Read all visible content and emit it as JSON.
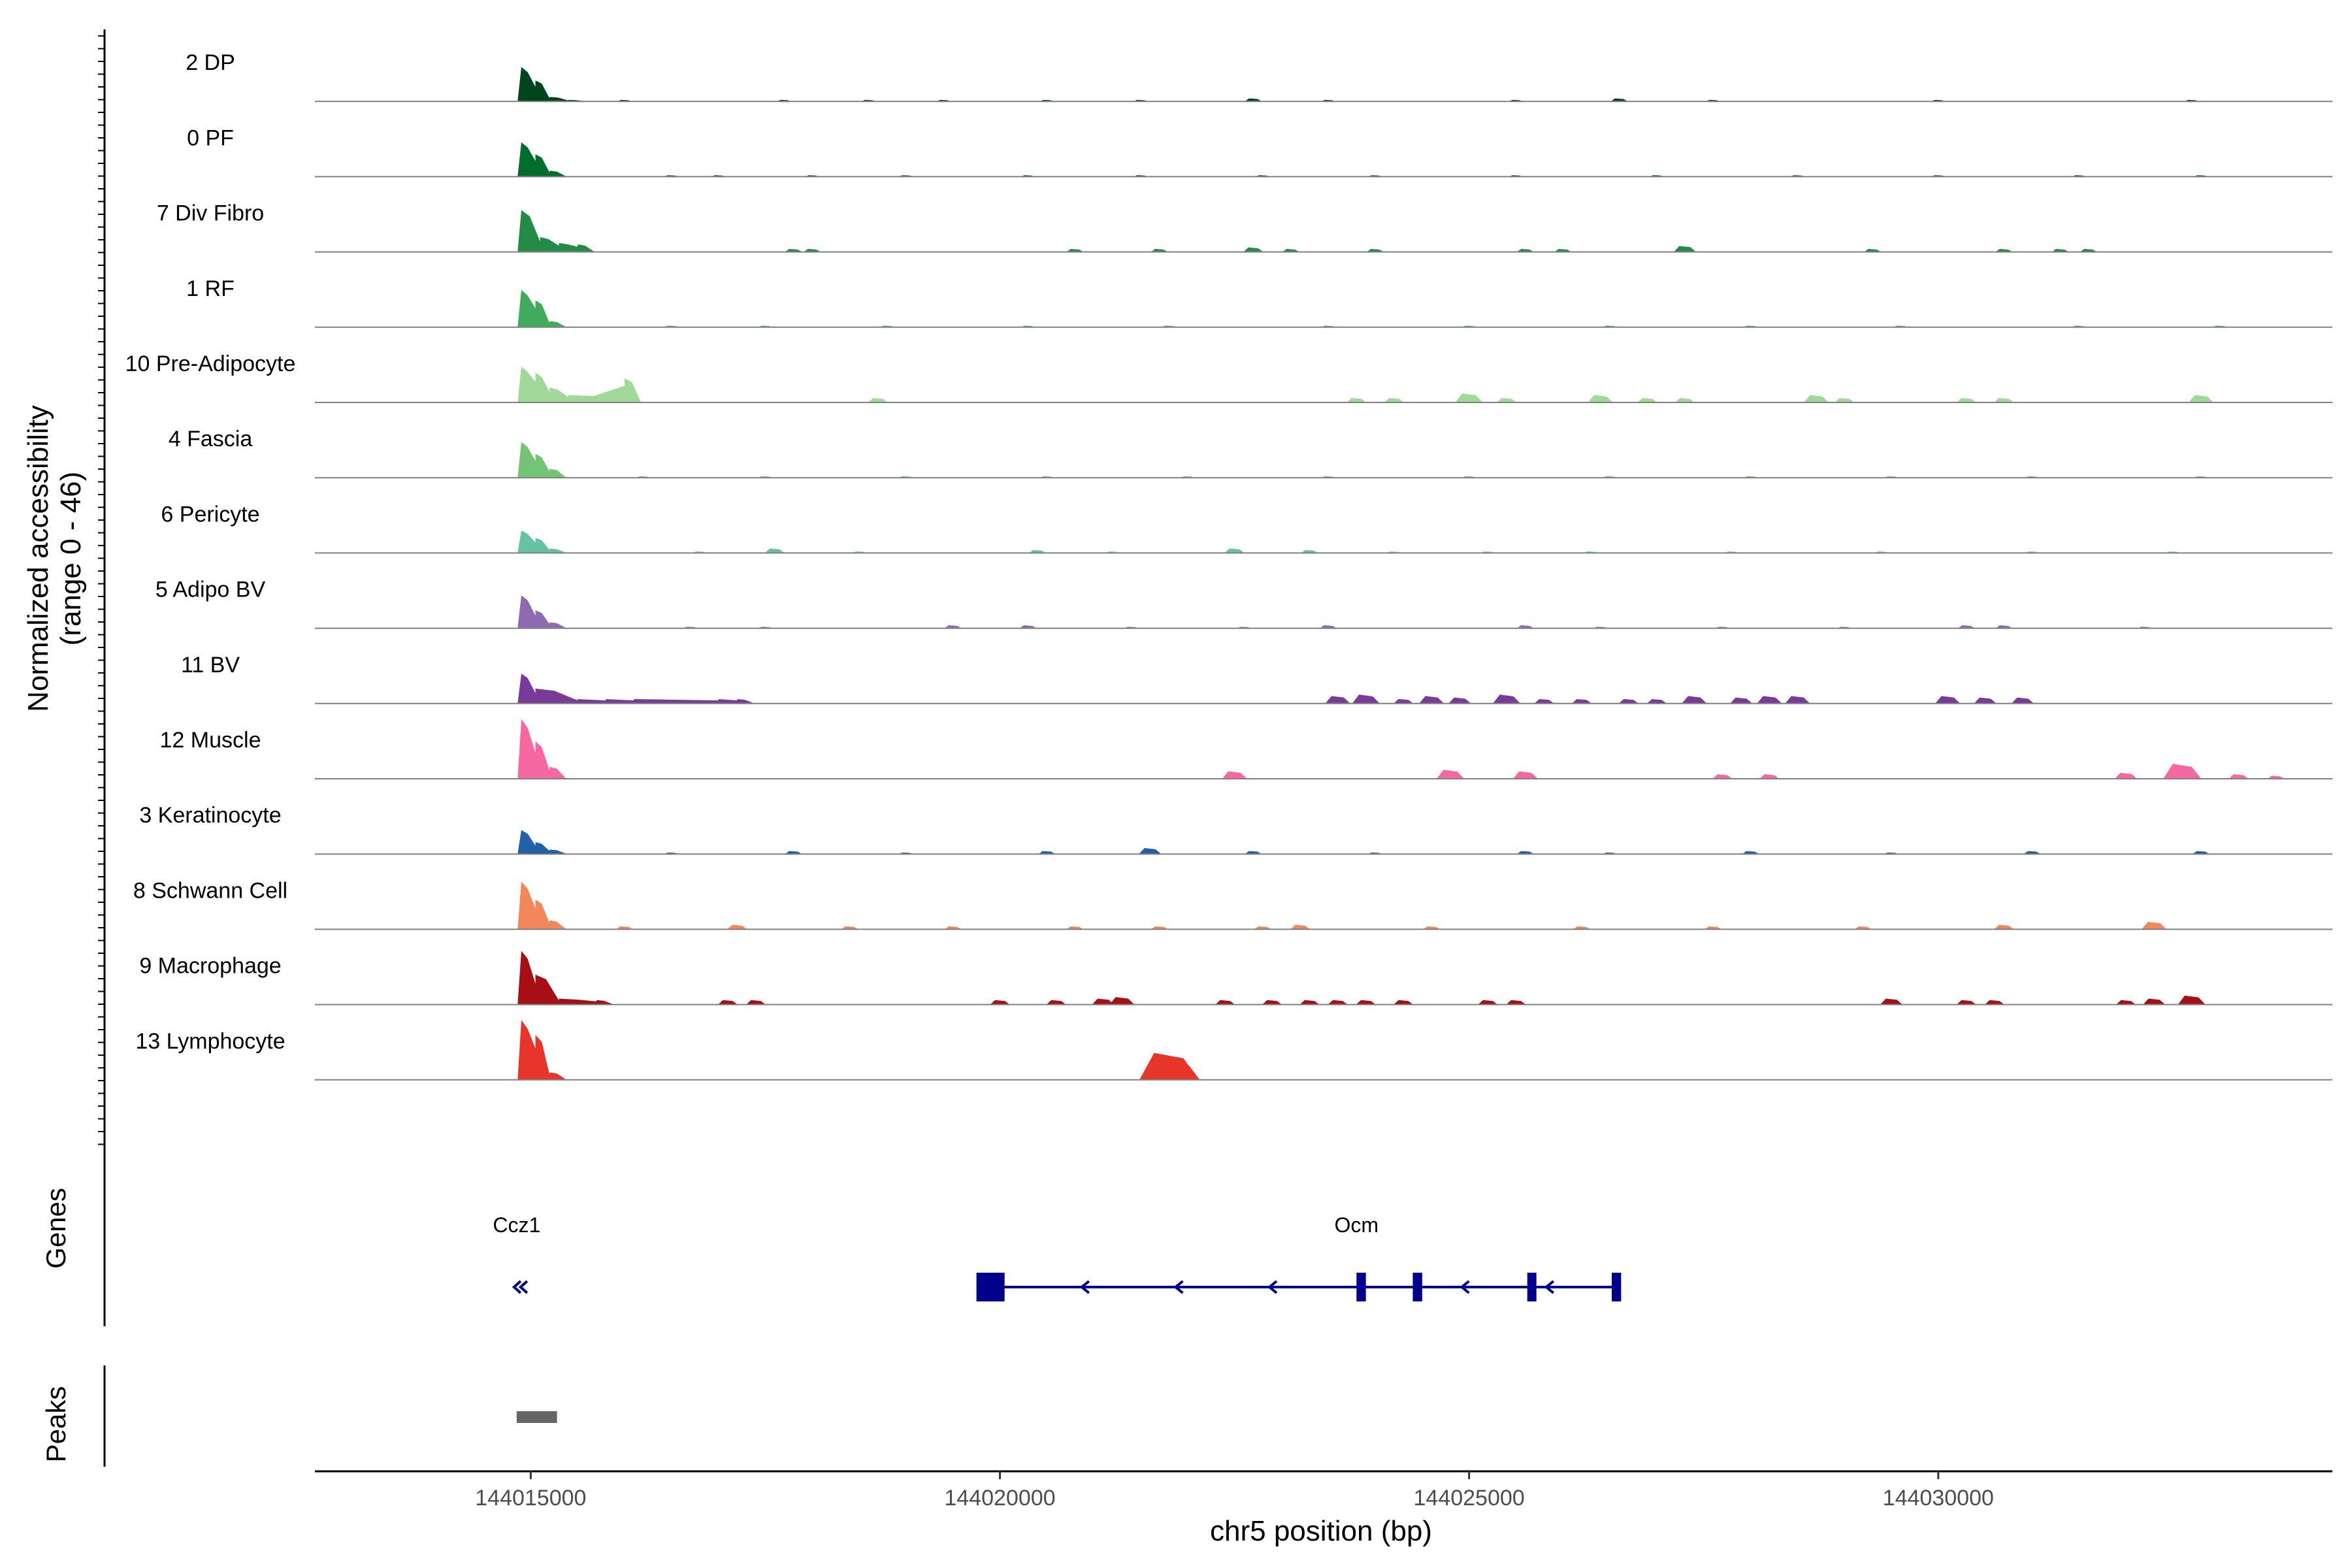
{
  "chart_data": {
    "type": "area",
    "title": "",
    "chromosome": "chr5",
    "xlabel": "chr5 position (bp)",
    "ylabel": "Normalized accessibility",
    "ylabel_range": "(range 0 - 46)",
    "xlim": [
      144012700,
      144034200
    ],
    "ylim": [
      0,
      46
    ],
    "x_ticks": [
      {
        "value": 144015000,
        "label": "144015000"
      },
      {
        "value": 144020000,
        "label": "144020000"
      },
      {
        "value": 144025000,
        "label": "144025000"
      },
      {
        "value": 144030000,
        "label": "144030000"
      }
    ],
    "tracks": [
      {
        "name": "2 DP",
        "color": "#00441b",
        "peaks": [
          [
            144014900,
            23
          ],
          [
            144015050,
            14
          ],
          [
            144015200,
            3
          ],
          [
            144015400,
            1
          ]
        ],
        "background": [
          [
            144016000,
            1
          ],
          [
            144017700,
            1
          ],
          [
            144018600,
            1
          ],
          [
            144019400,
            1
          ],
          [
            144020500,
            1
          ],
          [
            144021500,
            1
          ],
          [
            144022700,
            2
          ],
          [
            144023500,
            1
          ],
          [
            144025500,
            1
          ],
          [
            144026600,
            2
          ],
          [
            144027600,
            1
          ],
          [
            144030000,
            1
          ],
          [
            144032700,
            1
          ]
        ]
      },
      {
        "name": "0 PF",
        "color": "#006d2c",
        "peaks": [
          [
            144014900,
            23
          ],
          [
            144015050,
            15
          ],
          [
            144015200,
            4
          ]
        ],
        "background": [
          [
            144016500,
            1
          ],
          [
            144017000,
            1
          ],
          [
            144018000,
            1
          ],
          [
            144019000,
            1
          ],
          [
            144020300,
            1
          ],
          [
            144021500,
            1
          ],
          [
            144022800,
            1
          ],
          [
            144024000,
            1
          ],
          [
            144025500,
            1
          ],
          [
            144027000,
            1
          ],
          [
            144028500,
            1
          ],
          [
            144030000,
            1
          ],
          [
            144031500,
            1
          ],
          [
            144032800,
            1
          ]
        ]
      },
      {
        "name": "7 Div Fibro",
        "color": "#238b45",
        "peaks": [
          [
            144014900,
            28
          ],
          [
            144015100,
            10
          ],
          [
            144015300,
            6
          ],
          [
            144015500,
            5
          ]
        ],
        "background": [
          [
            144017800,
            2
          ],
          [
            144018000,
            2
          ],
          [
            144020800,
            2
          ],
          [
            144021700,
            2
          ],
          [
            144022700,
            3
          ],
          [
            144023100,
            2
          ],
          [
            144024000,
            2
          ],
          [
            144025600,
            2
          ],
          [
            144026000,
            2
          ],
          [
            144027300,
            4
          ],
          [
            144029300,
            2
          ],
          [
            144030700,
            2
          ],
          [
            144031300,
            2
          ],
          [
            144031600,
            2
          ]
        ]
      },
      {
        "name": "1 RF",
        "color": "#41ab5d",
        "peaks": [
          [
            144014900,
            25
          ],
          [
            144015050,
            18
          ],
          [
            144015200,
            4
          ]
        ],
        "background": [
          [
            144016500,
            1
          ],
          [
            144017500,
            1
          ],
          [
            144018800,
            1
          ],
          [
            144020300,
            1
          ],
          [
            144021800,
            1
          ],
          [
            144023500,
            1
          ],
          [
            144025000,
            1
          ],
          [
            144026500,
            1
          ],
          [
            144028000,
            1
          ],
          [
            144029600,
            1
          ],
          [
            144031500,
            1
          ],
          [
            144033000,
            1
          ]
        ]
      },
      {
        "name": "10 Pre-Adipocyte",
        "color": "#a1d99b",
        "peaks": [
          [
            144014900,
            24
          ],
          [
            144015050,
            20
          ],
          [
            144015200,
            10
          ],
          [
            144015400,
            5
          ],
          [
            144016000,
            16
          ]
        ],
        "background": [
          [
            144018700,
            3
          ],
          [
            144023800,
            3
          ],
          [
            144024200,
            3
          ],
          [
            144025000,
            6
          ],
          [
            144025400,
            3
          ],
          [
            144026400,
            5
          ],
          [
            144026900,
            3
          ],
          [
            144027300,
            3
          ],
          [
            144028700,
            5
          ],
          [
            144029000,
            3
          ],
          [
            144030300,
            3
          ],
          [
            144030700,
            3
          ],
          [
            144032800,
            5
          ]
        ]
      },
      {
        "name": "4 Fascia",
        "color": "#74c476",
        "peaks": [
          [
            144014900,
            24
          ],
          [
            144015050,
            16
          ],
          [
            144015200,
            6
          ]
        ],
        "background": [
          [
            144016200,
            1
          ],
          [
            144017500,
            1
          ],
          [
            144019000,
            1
          ],
          [
            144020500,
            1
          ],
          [
            144022000,
            1
          ],
          [
            144023500,
            1
          ],
          [
            144025000,
            1
          ],
          [
            144026500,
            1
          ],
          [
            144028000,
            1
          ],
          [
            144029500,
            1
          ],
          [
            144031000,
            1
          ],
          [
            144032800,
            1
          ]
        ]
      },
      {
        "name": "6 Pericyte",
        "color": "#66c2a4",
        "peaks": [
          [
            144014900,
            15
          ],
          [
            144015050,
            10
          ],
          [
            144015200,
            3
          ]
        ],
        "background": [
          [
            144016800,
            1
          ],
          [
            144017600,
            3
          ],
          [
            144018500,
            1
          ],
          [
            144020400,
            2
          ],
          [
            144021200,
            1
          ],
          [
            144022500,
            3
          ],
          [
            144023300,
            2
          ],
          [
            144024200,
            1
          ],
          [
            144025200,
            1
          ],
          [
            144026300,
            1
          ],
          [
            144027800,
            1
          ],
          [
            144029400,
            1
          ],
          [
            144031000,
            1
          ],
          [
            144032500,
            1
          ]
        ]
      },
      {
        "name": "5 Adipo BV",
        "color": "#8c6bb1",
        "peaks": [
          [
            144014900,
            22
          ],
          [
            144015050,
            12
          ],
          [
            144015200,
            4
          ]
        ],
        "background": [
          [
            144016700,
            1
          ],
          [
            144017500,
            1
          ],
          [
            144019500,
            2
          ],
          [
            144020300,
            2
          ],
          [
            144021400,
            1
          ],
          [
            144022600,
            1
          ],
          [
            144023500,
            2
          ],
          [
            144025600,
            2
          ],
          [
            144026400,
            1
          ],
          [
            144027700,
            1
          ],
          [
            144029000,
            1
          ],
          [
            144030300,
            2
          ],
          [
            144030700,
            2
          ],
          [
            144032200,
            1
          ]
        ]
      },
      {
        "name": "11 BV",
        "color": "#7a3a9a",
        "peaks": [
          [
            144014900,
            20
          ],
          [
            144015050,
            10
          ],
          [
            144015500,
            3
          ],
          [
            144015800,
            3
          ],
          [
            144016100,
            3
          ],
          [
            144017000,
            3
          ],
          [
            144017200,
            3
          ]
        ],
        "background": [
          [
            144023600,
            5
          ],
          [
            144023900,
            6
          ],
          [
            144024300,
            3
          ],
          [
            144024600,
            5
          ],
          [
            144024900,
            4
          ],
          [
            144025400,
            6
          ],
          [
            144025800,
            3
          ],
          [
            144026200,
            3
          ],
          [
            144026700,
            3
          ],
          [
            144027000,
            3
          ],
          [
            144027400,
            5
          ],
          [
            144027900,
            4
          ],
          [
            144028200,
            5
          ],
          [
            144028500,
            5
          ],
          [
            144030100,
            5
          ],
          [
            144030500,
            4
          ],
          [
            144030900,
            4
          ]
        ]
      },
      {
        "name": "12 Muscle",
        "color": "#f768a1",
        "peaks": [
          [
            144014900,
            40
          ],
          [
            144015050,
            25
          ],
          [
            144015200,
            8
          ]
        ],
        "background": [
          [
            144022500,
            5
          ],
          [
            144024800,
            6
          ],
          [
            144025600,
            5
          ],
          [
            144027700,
            3
          ],
          [
            144028200,
            3
          ],
          [
            144032000,
            4
          ],
          [
            144032600,
            10
          ],
          [
            144033200,
            3
          ],
          [
            144033600,
            2
          ]
        ]
      },
      {
        "name": "3 Keratinocyte",
        "color": "#2261a6",
        "peaks": [
          [
            144014900,
            16
          ],
          [
            144015050,
            8
          ],
          [
            144015200,
            3
          ]
        ],
        "background": [
          [
            144016500,
            1
          ],
          [
            144017800,
            2
          ],
          [
            144019000,
            1
          ],
          [
            144020500,
            2
          ],
          [
            144021600,
            4
          ],
          [
            144022700,
            2
          ],
          [
            144024000,
            1
          ],
          [
            144025600,
            2
          ],
          [
            144026500,
            1
          ],
          [
            144028000,
            2
          ],
          [
            144029500,
            1
          ],
          [
            144031000,
            2
          ],
          [
            144032800,
            2
          ]
        ]
      },
      {
        "name": "8 Schwann Cell",
        "color": "#f1875a",
        "peaks": [
          [
            144014900,
            32
          ],
          [
            144015050,
            20
          ],
          [
            144015200,
            6
          ]
        ],
        "background": [
          [
            144016000,
            2
          ],
          [
            144017200,
            3
          ],
          [
            144018400,
            2
          ],
          [
            144019500,
            2
          ],
          [
            144020800,
            2
          ],
          [
            144021700,
            2
          ],
          [
            144022800,
            2
          ],
          [
            144023200,
            3
          ],
          [
            144024600,
            2
          ],
          [
            144026200,
            2
          ],
          [
            144027600,
            2
          ],
          [
            144029200,
            2
          ],
          [
            144030700,
            3
          ],
          [
            144032300,
            5
          ]
        ]
      },
      {
        "name": "9 Macrophage",
        "color": "#a50f15",
        "peaks": [
          [
            144014900,
            36
          ],
          [
            144015050,
            20
          ],
          [
            144015300,
            4
          ],
          [
            144015700,
            3
          ]
        ],
        "background": [
          [
            144017100,
            3
          ],
          [
            144017400,
            3
          ],
          [
            144020000,
            3
          ],
          [
            144020600,
            3
          ],
          [
            144021100,
            4
          ],
          [
            144021300,
            5
          ],
          [
            144022400,
            3
          ],
          [
            144022900,
            3
          ],
          [
            144023300,
            3
          ],
          [
            144023600,
            3
          ],
          [
            144023900,
            3
          ],
          [
            144024300,
            3
          ],
          [
            144025200,
            3
          ],
          [
            144025500,
            3
          ],
          [
            144029500,
            4
          ],
          [
            144030300,
            3
          ],
          [
            144030600,
            3
          ],
          [
            144032000,
            3
          ],
          [
            144032300,
            4
          ],
          [
            144032700,
            6
          ]
        ]
      },
      {
        "name": "13 Lymphocyte",
        "color": "#e8352b",
        "peaks": [
          [
            144014900,
            40
          ],
          [
            144015050,
            30
          ],
          [
            144015200,
            5
          ]
        ],
        "background": [
          [
            144021800,
            18
          ],
          [
            144021900,
            12
          ]
        ]
      }
    ],
    "genes": [
      {
        "name": "Ccz1",
        "strand": "-",
        "start": 144014850,
        "end": 144014950,
        "exons": [],
        "label_at": 144014850
      },
      {
        "name": "Ocm",
        "strand": "-",
        "start": 144019750,
        "end": 144026600,
        "exons": [
          [
            144019750,
            144020050
          ],
          [
            144023800,
            144023900
          ],
          [
            144024400,
            144024500
          ],
          [
            144025620,
            144025680
          ],
          [
            144026520,
            144026620
          ]
        ],
        "label_at": 144023800
      }
    ],
    "peaks": [
      [
        144014850,
        144015280
      ]
    ],
    "panels": {
      "genes_title": "Genes",
      "peaks_title": "Peaks"
    },
    "colors": {
      "gene": "#00008b",
      "peak": "#666666",
      "baseline": "#808080",
      "axis": "#000000"
    }
  }
}
